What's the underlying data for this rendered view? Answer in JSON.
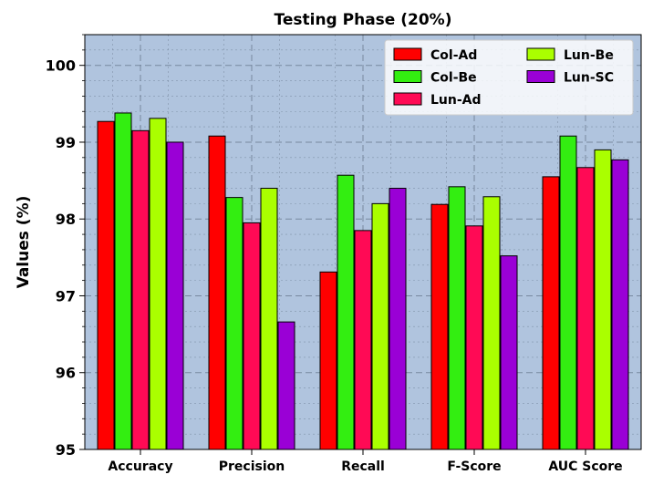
{
  "chart_data": {
    "type": "bar",
    "title": "Testing Phase (20%)",
    "xlabel": "",
    "ylabel": "Values (%)",
    "ylim": [
      95,
      100.4
    ],
    "yticks": [
      95,
      96,
      97,
      98,
      99,
      100
    ],
    "grid": true,
    "legend_position": "top-right",
    "categories": [
      "Accuracy",
      "Precision",
      "Recall",
      "F-Score",
      "AUC Score"
    ],
    "series": [
      {
        "name": "Col-Ad",
        "color": "#ff0000",
        "values": [
          99.27,
          99.08,
          97.31,
          98.19,
          98.55
        ]
      },
      {
        "name": "Col-Be",
        "color": "#33ee11",
        "values": [
          99.38,
          98.28,
          98.57,
          98.42,
          99.08
        ]
      },
      {
        "name": "Lun-Ad",
        "color": "#ff0a55",
        "values": [
          99.15,
          97.95,
          97.85,
          97.91,
          98.67
        ]
      },
      {
        "name": "Lun-Be",
        "color": "#aaff00",
        "values": [
          99.31,
          98.4,
          98.2,
          98.29,
          98.9
        ]
      },
      {
        "name": "Lun-SC",
        "color": "#9a00d6",
        "values": [
          99.0,
          96.66,
          98.4,
          97.52,
          98.77
        ]
      }
    ],
    "colors": {
      "plot_background": "#b0c4de",
      "grid": "#6e7f95"
    }
  }
}
